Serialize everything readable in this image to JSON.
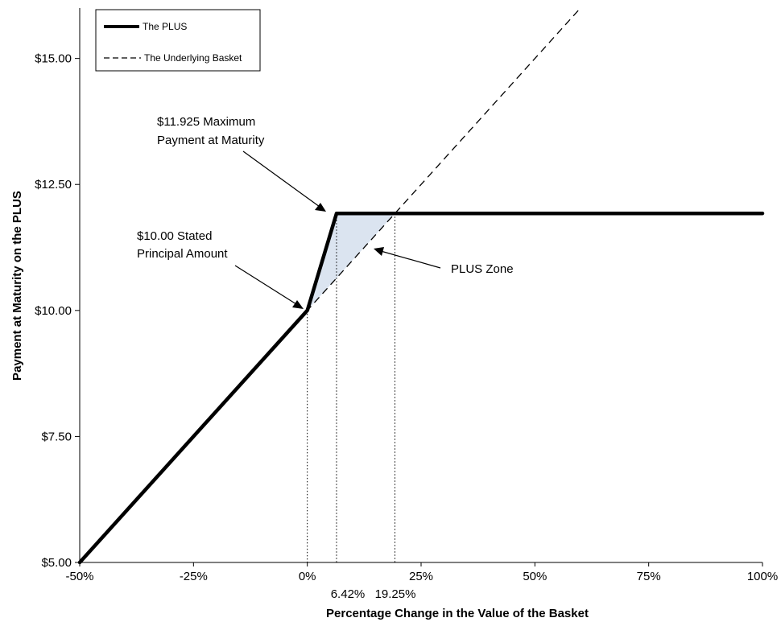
{
  "chart_data": {
    "type": "line",
    "xlabel": "Percentage Change in the Value of the Basket",
    "ylabel": "Payment at Maturity on the PLUS",
    "xlim": [
      -50,
      100
    ],
    "ylim": [
      5,
      16
    ],
    "x_ticks": [
      -50,
      -25,
      0,
      25,
      50,
      75,
      100
    ],
    "x_tick_labels": [
      "-50%",
      "-25%",
      "0%",
      "25%",
      "50%",
      "75%",
      "100%"
    ],
    "y_ticks": [
      5,
      7.5,
      10,
      12.5,
      15
    ],
    "y_tick_labels": [
      "$5.00",
      "$7.50",
      "$10.00",
      "$12.50",
      "$15.00"
    ],
    "legend": {
      "placement": "top-left",
      "entries": [
        "The PLUS",
        "The Underlying Basket"
      ]
    },
    "series": [
      {
        "name": "The PLUS",
        "style": "solid-thick",
        "x": [
          -50,
          0,
          6.42,
          100
        ],
        "y": [
          5,
          10,
          11.925,
          11.925
        ]
      },
      {
        "name": "The Underlying Basket",
        "style": "dashed",
        "x": [
          -50,
          60
        ],
        "y": [
          5,
          16
        ]
      }
    ],
    "zone": {
      "x": [
        0,
        6.42,
        19.25
      ],
      "y": [
        10,
        11.925,
        11.925
      ],
      "fill": "#dbe4f0"
    },
    "reference_lines": [
      {
        "x": 0,
        "y_top": 10
      },
      {
        "x": 6.42,
        "y_top": 11.925
      },
      {
        "x": 19.25,
        "y_top": 11.925
      }
    ],
    "extra_x_labels": [
      "6.42%",
      "19.25%"
    ],
    "annotations": {
      "max_payment_line1": "$11.925 Maximum",
      "max_payment_line2": "Payment at Maturity",
      "principal_line1": "$10.00 Stated",
      "principal_line2": "Principal Amount",
      "plus_zone": "PLUS Zone"
    }
  }
}
